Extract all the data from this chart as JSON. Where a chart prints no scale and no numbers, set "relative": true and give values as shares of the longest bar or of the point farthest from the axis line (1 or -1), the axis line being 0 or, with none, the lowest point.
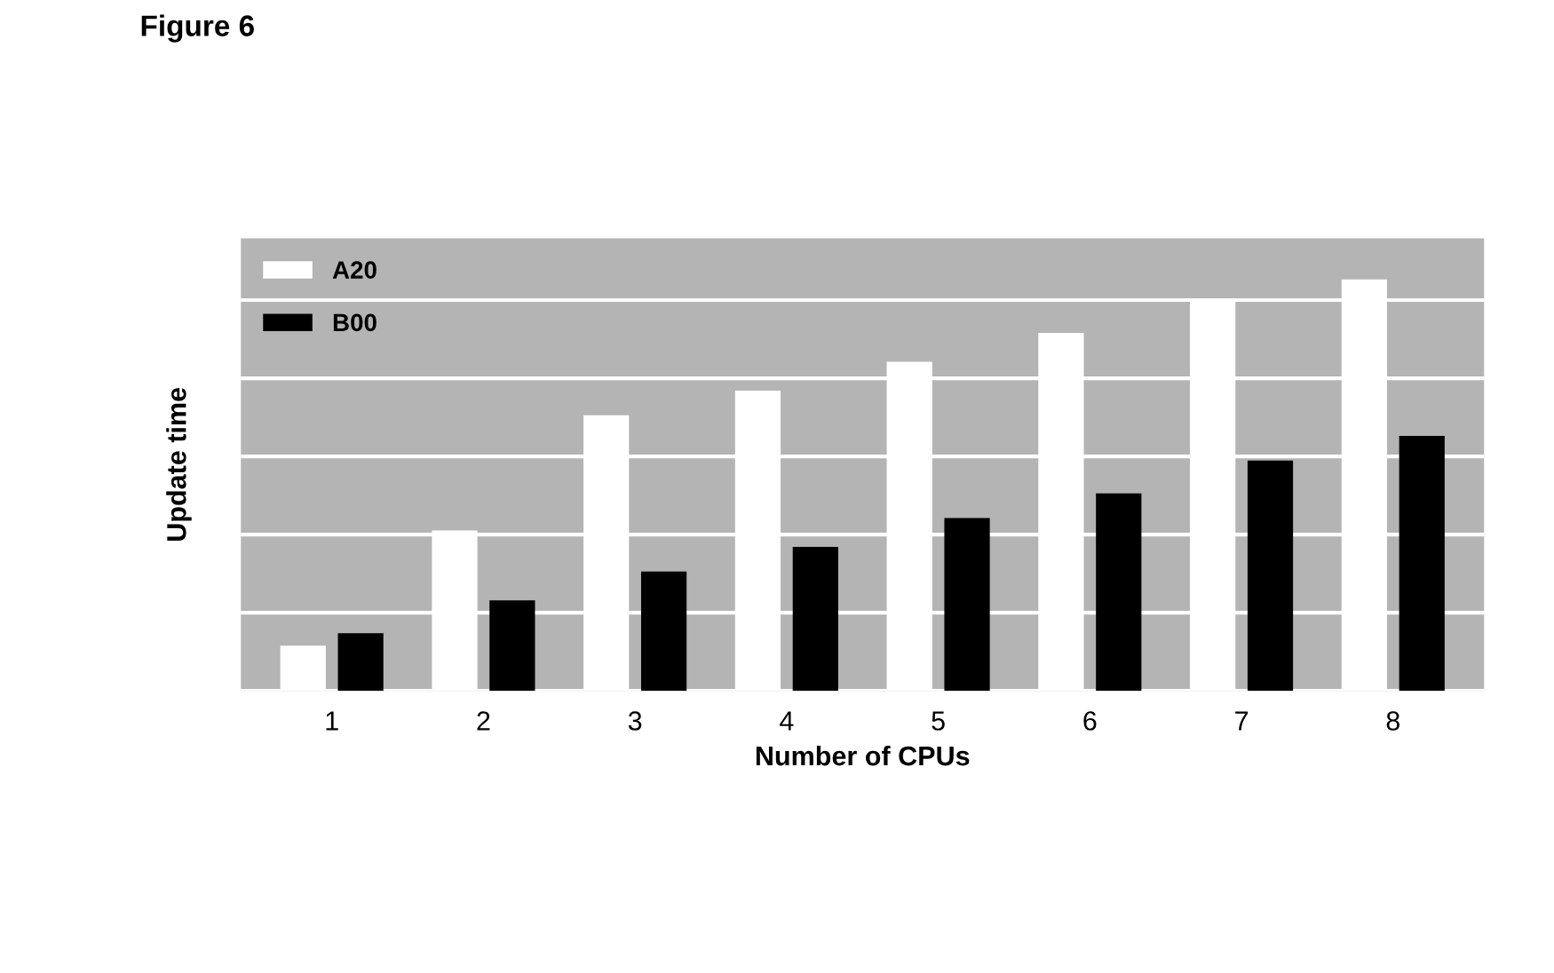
{
  "chart_data": {
    "type": "bar",
    "title": "Figure 6",
    "xlabel": "Number of CPUs",
    "ylabel": "Update time",
    "relative": true,
    "categories": [
      "1",
      "2",
      "3",
      "4",
      "5",
      "6",
      "7",
      "8"
    ],
    "series": [
      {
        "name": "A20",
        "color": "#ffffff",
        "values": [
          0.11,
          0.39,
          0.67,
          0.73,
          0.8,
          0.87,
          0.95,
          1
        ]
      },
      {
        "name": "B00",
        "color": "#000000",
        "values": [
          0.14,
          0.22,
          0.29,
          0.35,
          0.42,
          0.48,
          0.56,
          0.62
        ]
      }
    ],
    "grid": "y",
    "legend": "top left"
  }
}
